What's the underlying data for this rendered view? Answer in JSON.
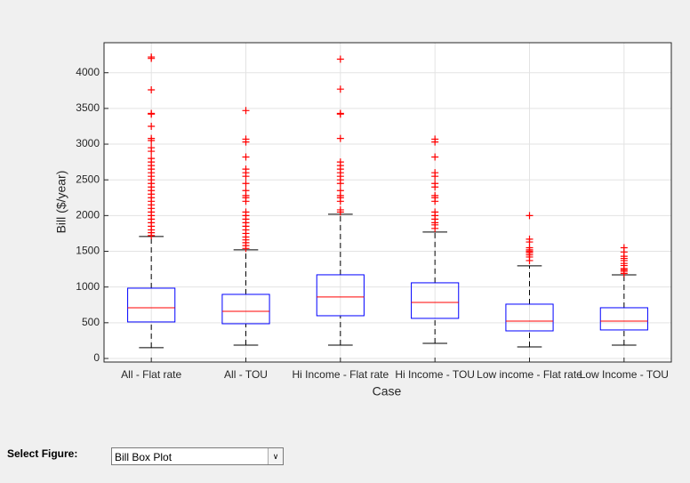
{
  "chart_data": {
    "type": "box",
    "categories": [
      "All - Flat rate",
      "All - TOU",
      "Hi Income - Flat rate",
      "Hi Income - TOU",
      "Low income - Flat rate",
      "Low Income - TOU"
    ],
    "x_label": "Case",
    "y_label": "Bill ($/year)",
    "ylim": [
      -50,
      4420
    ],
    "yticks": [
      0,
      500,
      1000,
      1500,
      2000,
      2500,
      3000,
      3500,
      4000
    ],
    "grid": true,
    "box_color": "#0000ff",
    "median_color": "#ff0000",
    "outlier_color": "#ff0000",
    "whisker_color": "#000000",
    "boxes": [
      {
        "whisker_low": 150,
        "q1": 511,
        "median": 710,
        "q3": 984,
        "whisker_high": 1707,
        "outliers": [
          1720,
          1760,
          1800,
          1850,
          1900,
          1950,
          2000,
          2050,
          2100,
          2150,
          2200,
          2250,
          2300,
          2350,
          2400,
          2450,
          2500,
          2550,
          2600,
          2650,
          2700,
          2750,
          2800,
          2900,
          2950,
          3050,
          3080,
          3250,
          3420,
          3430,
          3760,
          4200,
          4220
        ]
      },
      {
        "whisker_low": 187,
        "q1": 486,
        "median": 660,
        "q3": 897,
        "whisker_high": 1520,
        "outliers": [
          1540,
          1580,
          1620,
          1660,
          1700,
          1750,
          1800,
          1850,
          1900,
          1950,
          2000,
          2050,
          2200,
          2250,
          2280,
          2350,
          2450,
          2550,
          2600,
          2650,
          2820,
          3030,
          3070,
          3470
        ]
      },
      {
        "whisker_low": 187,
        "q1": 598,
        "median": 860,
        "q3": 1171,
        "whisker_high": 2019,
        "outliers": [
          2050,
          2080,
          2200,
          2250,
          2280,
          2350,
          2450,
          2500,
          2550,
          2600,
          2650,
          2700,
          2750,
          3080,
          3420,
          3430,
          3770,
          4190
        ]
      },
      {
        "whisker_low": 212,
        "q1": 561,
        "median": 785,
        "q3": 1059,
        "whisker_high": 1770,
        "outliers": [
          1820,
          1870,
          1900,
          1950,
          2000,
          2050,
          2200,
          2250,
          2280,
          2400,
          2450,
          2550,
          2600,
          2820,
          3030,
          3070
        ]
      },
      {
        "whisker_low": 162,
        "q1": 386,
        "median": 523,
        "q3": 760,
        "whisker_high": 1296,
        "outliers": [
          1370,
          1420,
          1450,
          1480,
          1500,
          1520,
          1550,
          1630,
          1670,
          2000
        ]
      },
      {
        "whisker_low": 187,
        "q1": 399,
        "median": 523,
        "q3": 710,
        "whisker_high": 1171,
        "outliers": [
          1190,
          1220,
          1240,
          1260,
          1300,
          1330,
          1370,
          1400,
          1430,
          1490,
          1550
        ]
      }
    ]
  },
  "controls": {
    "select_label": "Select Figure:",
    "select_value": "Bill Box Plot"
  }
}
